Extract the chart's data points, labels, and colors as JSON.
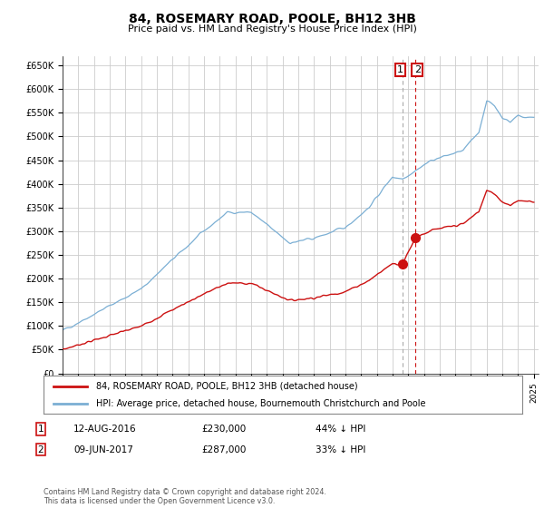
{
  "title": "84, ROSEMARY ROAD, POOLE, BH12 3HB",
  "subtitle": "Price paid vs. HM Land Registry's House Price Index (HPI)",
  "ylabel_ticks": [
    "£0",
    "£50K",
    "£100K",
    "£150K",
    "£200K",
    "£250K",
    "£300K",
    "£350K",
    "£400K",
    "£450K",
    "£500K",
    "£550K",
    "£600K",
    "£650K"
  ],
  "ytick_values": [
    0,
    50000,
    100000,
    150000,
    200000,
    250000,
    300000,
    350000,
    400000,
    450000,
    500000,
    550000,
    600000,
    650000
  ],
  "ylim": [
    0,
    670000
  ],
  "hpi_color": "#7bafd4",
  "price_color": "#cc1111",
  "bg_color": "#ffffff",
  "grid_color": "#cccccc",
  "transaction1": {
    "date": "12-AUG-2016",
    "price": 230000,
    "label": "1",
    "pct": "44% ↓ HPI",
    "year": 2016.625
  },
  "transaction2": {
    "date": "09-JUN-2017",
    "price": 287000,
    "label": "2",
    "pct": "33% ↓ HPI",
    "year": 2017.458
  },
  "legend_label1": "84, ROSEMARY ROAD, POOLE, BH12 3HB (detached house)",
  "legend_label2": "HPI: Average price, detached house, Bournemouth Christchurch and Poole",
  "footer": "Contains HM Land Registry data © Crown copyright and database right 2024.\nThis data is licensed under the Open Government Licence v3.0.",
  "x_start_year": 1995,
  "x_end_year": 2025
}
